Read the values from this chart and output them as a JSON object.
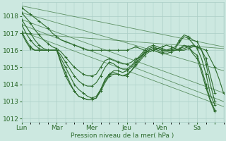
{
  "xlabel": "Pression niveau de la mer( hPa )",
  "ylim": [
    1011.8,
    1018.8
  ],
  "xlim": [
    0,
    138
  ],
  "yticks": [
    1012,
    1013,
    1014,
    1015,
    1016,
    1017,
    1018
  ],
  "xtick_positions": [
    0,
    24,
    48,
    72,
    96,
    120,
    132
  ],
  "xtick_labels": [
    "Lun",
    "Mar",
    "Mer",
    "Jeu",
    "Ven",
    "Sa",
    ""
  ],
  "bg_color": "#cce8e0",
  "grid_color": "#aacec6",
  "line_color": "#2d6b2d",
  "marker_every": 2,
  "trend_lines": [
    {
      "x": [
        0,
        138
      ],
      "y": [
        1018.6,
        1016.2
      ]
    },
    {
      "x": [
        0,
        138
      ],
      "y": [
        1018.2,
        1014.8
      ]
    },
    {
      "x": [
        0,
        138
      ],
      "y": [
        1017.8,
        1013.5
      ]
    },
    {
      "x": [
        0,
        138
      ],
      "y": [
        1017.5,
        1013.0
      ]
    },
    {
      "x": [
        0,
        138
      ],
      "y": [
        1017.1,
        1012.7
      ]
    },
    {
      "x": [
        0,
        138
      ],
      "y": [
        1017.0,
        1016.1
      ]
    }
  ],
  "series": [
    {
      "x": [
        0,
        3,
        6,
        9,
        12,
        15,
        18,
        21,
        24,
        27,
        30,
        33,
        36,
        39,
        42,
        45,
        48,
        51,
        54,
        57,
        60,
        63,
        66,
        69,
        72,
        75,
        78,
        81,
        84,
        87,
        90,
        93,
        96,
        99,
        102,
        105,
        108,
        111,
        114,
        117,
        120,
        123,
        126,
        129,
        132,
        135,
        138
      ],
      "y": [
        1018.5,
        1018.3,
        1018.1,
        1017.9,
        1017.7,
        1017.5,
        1017.3,
        1017.0,
        1016.8,
        1016.6,
        1016.5,
        1016.4,
        1016.3,
        1016.2,
        1016.1,
        1016.0,
        1016.0,
        1016.0,
        1016.0,
        1016.0,
        1016.0,
        1016.0,
        1016.0,
        1016.0,
        1016.0,
        1016.1,
        1016.2,
        1016.1,
        1016.0,
        1015.9,
        1016.0,
        1016.1,
        1016.2,
        1016.3,
        1016.2,
        1016.1,
        1016.0,
        1016.0,
        1016.1,
        1016.2,
        1016.2,
        1016.1,
        1016.0,
        1015.5,
        1015.0,
        1014.3,
        1013.5
      ]
    },
    {
      "x": [
        0,
        3,
        6,
        9,
        12,
        15,
        18,
        21,
        24,
        27,
        30,
        33,
        36,
        39,
        42,
        45,
        48,
        51,
        54,
        57,
        60,
        63,
        66,
        69,
        72,
        75,
        78,
        81,
        84,
        87,
        90,
        93,
        96,
        99,
        102,
        105,
        108,
        111,
        114,
        117,
        120,
        123,
        126,
        129,
        132
      ],
      "y": [
        1018.2,
        1017.9,
        1017.6,
        1017.2,
        1016.9,
        1016.6,
        1016.4,
        1016.2,
        1016.1,
        1015.9,
        1015.6,
        1015.3,
        1015.0,
        1014.8,
        1014.6,
        1014.5,
        1014.5,
        1014.6,
        1015.0,
        1015.4,
        1015.5,
        1015.4,
        1015.3,
        1015.2,
        1015.2,
        1015.3,
        1015.5,
        1015.6,
        1015.8,
        1016.0,
        1016.1,
        1016.1,
        1016.0,
        1016.0,
        1016.0,
        1016.0,
        1016.0,
        1016.1,
        1016.2,
        1016.3,
        1016.2,
        1016.0,
        1015.5,
        1014.5,
        1013.5
      ]
    },
    {
      "x": [
        0,
        3,
        6,
        9,
        12,
        15,
        18,
        21,
        24,
        27,
        30,
        33,
        36,
        39,
        42,
        45,
        48,
        51,
        54,
        57,
        60,
        63,
        66,
        69,
        72,
        75,
        78,
        81,
        84,
        87,
        90,
        93,
        96,
        99,
        102,
        105,
        108,
        111,
        114,
        117,
        120,
        123,
        126,
        129,
        132
      ],
      "y": [
        1017.8,
        1017.4,
        1017.0,
        1016.6,
        1016.3,
        1016.1,
        1016.0,
        1016.0,
        1016.0,
        1015.7,
        1015.3,
        1014.9,
        1014.5,
        1014.2,
        1014.0,
        1013.9,
        1013.9,
        1014.1,
        1014.5,
        1015.0,
        1015.3,
        1015.2,
        1015.0,
        1014.9,
        1014.9,
        1015.1,
        1015.4,
        1015.7,
        1016.0,
        1016.2,
        1016.3,
        1016.2,
        1016.1,
        1016.0,
        1016.1,
        1016.2,
        1016.6,
        1016.9,
        1016.8,
        1016.6,
        1016.5,
        1016.0,
        1015.2,
        1014.0,
        1013.0
      ]
    },
    {
      "x": [
        0,
        3,
        6,
        9,
        12,
        15,
        18,
        21,
        24,
        27,
        30,
        33,
        36,
        39,
        42,
        45,
        48,
        51,
        54,
        57,
        60,
        63,
        66,
        69,
        72,
        75,
        78,
        81,
        84,
        87,
        90,
        93,
        96,
        99,
        102,
        105,
        108,
        111,
        114,
        117,
        120,
        123,
        126,
        129,
        132
      ],
      "y": [
        1017.5,
        1017.0,
        1016.6,
        1016.3,
        1016.1,
        1016.0,
        1016.0,
        1016.0,
        1016.0,
        1015.5,
        1015.0,
        1014.5,
        1014.0,
        1013.7,
        1013.5,
        1013.3,
        1013.2,
        1013.3,
        1013.7,
        1014.2,
        1014.6,
        1014.8,
        1014.8,
        1014.7,
        1014.8,
        1015.0,
        1015.3,
        1015.6,
        1015.9,
        1016.1,
        1016.2,
        1016.1,
        1016.0,
        1016.0,
        1016.0,
        1016.1,
        1016.5,
        1016.8,
        1016.7,
        1016.4,
        1016.1,
        1015.5,
        1014.6,
        1013.4,
        1012.8
      ]
    },
    {
      "x": [
        0,
        3,
        6,
        9,
        12,
        15,
        18,
        21,
        24,
        27,
        30,
        33,
        36,
        39,
        42,
        45,
        48,
        51,
        54,
        57,
        60,
        63,
        66,
        69,
        72,
        75,
        78,
        81,
        84,
        87,
        90,
        93,
        96,
        99,
        102,
        105,
        108,
        111,
        114,
        117,
        120,
        123,
        126,
        129,
        132
      ],
      "y": [
        1017.1,
        1016.6,
        1016.2,
        1016.0,
        1016.0,
        1016.0,
        1016.0,
        1016.0,
        1016.0,
        1015.3,
        1014.7,
        1014.1,
        1013.6,
        1013.3,
        1013.2,
        1013.1,
        1013.1,
        1013.2,
        1013.6,
        1014.1,
        1014.5,
        1014.6,
        1014.6,
        1014.5,
        1014.6,
        1014.8,
        1015.1,
        1015.4,
        1015.7,
        1015.9,
        1016.0,
        1015.9,
        1015.8,
        1015.8,
        1015.9,
        1016.0,
        1016.1,
        1016.3,
        1016.2,
        1015.9,
        1015.7,
        1014.9,
        1014.0,
        1013.1,
        1012.5
      ]
    },
    {
      "x": [
        0,
        3,
        6,
        9,
        12,
        15,
        18,
        21,
        24,
        27,
        30,
        33,
        36,
        39,
        42,
        45,
        48,
        51,
        54,
        57,
        60,
        63,
        66,
        69,
        72,
        75,
        78,
        81,
        84,
        87,
        90,
        93,
        96,
        99,
        102,
        105,
        108,
        111,
        114,
        117,
        120,
        123,
        126,
        129,
        132
      ],
      "y": [
        1017.0,
        1016.5,
        1016.1,
        1016.0,
        1016.0,
        1016.0,
        1016.0,
        1016.0,
        1016.0,
        1015.2,
        1014.5,
        1014.0,
        1013.6,
        1013.3,
        1013.2,
        1013.1,
        1013.1,
        1013.2,
        1013.7,
        1014.3,
        1014.6,
        1014.7,
        1014.6,
        1014.5,
        1014.5,
        1014.8,
        1015.2,
        1015.5,
        1015.8,
        1016.0,
        1016.1,
        1016.0,
        1015.9,
        1015.9,
        1016.0,
        1016.0,
        1016.1,
        1016.2,
        1016.2,
        1015.8,
        1015.5,
        1014.7,
        1013.8,
        1013.0,
        1012.4
      ]
    }
  ]
}
